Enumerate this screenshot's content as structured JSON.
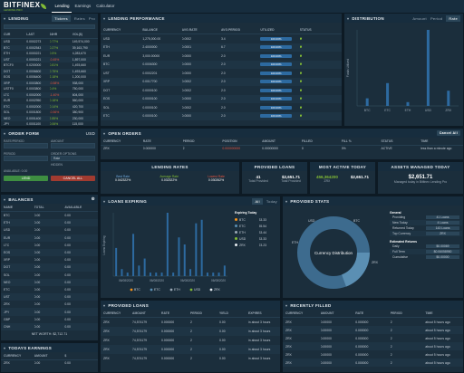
{
  "app": {
    "name": "BITFINEX",
    "sub": "LENDING PRO",
    "tabs": [
      "Lending",
      "Earnings",
      "Calculator"
    ]
  },
  "lending": {
    "title": "LENDING",
    "tabs": [
      "Tickers",
      "Rates",
      "Pro"
    ],
    "cols": [
      "CUR",
      "LAST",
      "24HR",
      "VOL($)"
    ],
    "rows": [
      [
        "USD",
        "0.0002273",
        "0.77%",
        "149,574,000"
      ],
      [
        "BTC",
        "0.0002543",
        "0.27%",
        "39,163,790"
      ],
      [
        "ETH",
        "0.0000221",
        "0.5%",
        "4,283,670"
      ],
      [
        "UST",
        "0.0000221",
        "-0.45%",
        "1,897,000"
      ],
      [
        "BTCF0",
        "0.0200000",
        "0.81%",
        "1,493,660"
      ],
      [
        "DOT",
        "0.0006600",
        "0.75%",
        "1,493,660"
      ],
      [
        "EOS",
        "0.0006400",
        "2.18%",
        "1,200,000"
      ],
      [
        "XRP",
        "0.0003800",
        "-0.58%",
        "938,000"
      ],
      [
        "USTF0",
        "0.0003800",
        "0.4%",
        "750,000"
      ],
      [
        "LTC",
        "0.0002000",
        "-1.40%",
        "604,000"
      ],
      [
        "EUR",
        "0.0002950",
        "0.18%",
        "560,000"
      ],
      [
        "ETC",
        "0.0002000",
        "0.14%",
        "420,700"
      ],
      [
        "SOL",
        "0.0001800",
        "-0.56%",
        "380,900"
      ],
      [
        "NEO",
        "0.0001400",
        "2.85%",
        "230,000"
      ],
      [
        "JPY",
        "0.0001100",
        "0.06%",
        "115,000"
      ]
    ]
  },
  "lending_perf": {
    "title": "LENDING PERFORMANCE",
    "cols": [
      "CURRENCY",
      "BALANCE",
      "AVG.RATE",
      "AVG.PERIOD",
      "UTILIZED",
      "STATUS"
    ],
    "rows": [
      [
        "USD",
        "1,275,000.00",
        "0.0002",
        "3.4",
        "100.00%"
      ],
      [
        "ETH",
        "2.4000000",
        "0.0001",
        "6.7",
        "100.00%"
      ],
      [
        "EUR",
        "3,000.00000",
        "0.0000",
        "2.0",
        "100.00%"
      ],
      [
        "BTC",
        "0.0006300",
        "0.0000",
        "2.0",
        "100.00%"
      ],
      [
        "UST",
        "0.0002201",
        "0.0000",
        "2.0",
        "100.00%"
      ],
      [
        "XRP",
        "0.0017700",
        "0.0002",
        "2.0",
        "100.00%"
      ],
      [
        "DOT",
        "0.0000100",
        "0.0002",
        "2.0",
        "100.00%"
      ],
      [
        "EOS",
        "0.0000100",
        "0.0000",
        "2.0",
        "100.00%"
      ],
      [
        "SOL",
        "0.0000100",
        "0.0002",
        "2.0",
        "100.00%"
      ],
      [
        "ETC",
        "0.0000100",
        "0.0000",
        "2.0",
        "100.00%"
      ]
    ]
  },
  "distribution": {
    "title": "DISTRIBUTION",
    "tabs": [
      "Amount",
      "Period",
      "Rate"
    ],
    "ylabel": "Funds Utilized",
    "chart_data": {
      "type": "bar",
      "categories": [
        "BTC",
        "ETC",
        "ETH",
        "USD",
        "ZRX"
      ],
      "values": [
        0.1,
        0.3,
        0.05,
        1.0,
        0.2
      ],
      "xlabel": "",
      "ylabel": ""
    }
  },
  "order_form": {
    "title": "ORDER FORM",
    "currency": "USD",
    "labels": [
      "RATE/PERIOD",
      "AMOUNT",
      "PERIOD",
      "ORDER OPTIONS"
    ],
    "options": [
      "Rate",
      "HIDDEN"
    ],
    "lend": "LEND",
    "cancel": "CANCEL ALL",
    "avail": "AVAILABLE: 0.00"
  },
  "balances": {
    "title": "BALANCES",
    "cols": [
      "NAME",
      "TOTAL",
      "AVAILABLE"
    ],
    "rows": [
      [
        "BTC",
        "0.00",
        "0.00"
      ],
      [
        "ETH",
        "0.00",
        "0.00"
      ],
      [
        "USD",
        "0.00",
        "0.00"
      ],
      [
        "EUR",
        "0.00",
        "0.00"
      ],
      [
        "LTC",
        "0.00",
        "0.00"
      ],
      [
        "EOS",
        "0.00",
        "0.00"
      ],
      [
        "XRP",
        "0.00",
        "0.00"
      ],
      [
        "DOT",
        "0.00",
        "0.00"
      ],
      [
        "SOL",
        "0.00",
        "0.00"
      ],
      [
        "NEO",
        "0.00",
        "0.00"
      ],
      [
        "ETC",
        "0.00",
        "0.00"
      ],
      [
        "UST",
        "0.00",
        "0.00"
      ],
      [
        "ZRX",
        "0.00",
        "0.00"
      ],
      [
        "JPY",
        "0.00",
        "0.00"
      ],
      [
        "GBP",
        "0.00",
        "0.00"
      ],
      [
        "CNH",
        "0.00",
        "0.00"
      ]
    ],
    "net_worth": "NET WORTH: $2,712.71"
  },
  "todays_earnings": {
    "title": "TODAYS EARNINGS",
    "cols": [
      "CURRENCY",
      "AMOUNT",
      "$"
    ],
    "rows": [
      [
        "ZRX",
        "0.00",
        "0.00"
      ]
    ]
  },
  "open_orders": {
    "title": "OPEN ORDERS",
    "cancel": "Cancel All",
    "cols": [
      "CURRENCY",
      "RATE",
      "PERIOD",
      "POSITION",
      "AMOUNT",
      "FILLED",
      "FILL %",
      "STATUS",
      "TIME"
    ],
    "row": [
      "ZRX",
      "0.000000",
      "2",
      "0.000000000",
      "0.00000000",
      "0",
      "0%",
      "ACTIVE",
      "less than a minute ago"
    ]
  },
  "lending_rates": {
    "title": "LENDING RATES",
    "items": [
      [
        "Best Rate",
        "0.042322%"
      ],
      [
        "Average Rate",
        "0.032322%"
      ],
      [
        "Lowest Rate",
        "0.030262%"
      ]
    ]
  },
  "provided_loans_stat": {
    "title": "PROVIDED LOANS",
    "items": [
      [
        "41",
        "Total Provided"
      ],
      [
        "$2,651.71",
        "Total Provided"
      ]
    ]
  },
  "most_active": {
    "title": "MOST ACTIVE TODAY",
    "items": [
      [
        "456,364200",
        "ZRX"
      ],
      [
        "$2,651.71",
        ""
      ]
    ]
  },
  "assets_managed": {
    "title": "ASSETS MANAGED TODAY",
    "value": "$2,651.71",
    "label": "Managed today in Bitfinex Lending Pro"
  },
  "loans_expiring": {
    "title": "LOANS EXPIRING",
    "tabs": [
      "All",
      "Today"
    ],
    "ylabel": "Loans Expiring",
    "xlabels": [
      "06/08/2020",
      "06/08/2020",
      "06/08/2020",
      "06/08/2020"
    ],
    "legend": [
      "BTC",
      "ETC",
      "ETH",
      "USD",
      "ZRX"
    ],
    "chart_data": {
      "type": "bar",
      "categories": [
        "1",
        "2",
        "3",
        "4",
        "5",
        "6",
        "7",
        "8",
        "9",
        "10",
        "11",
        "12",
        "13",
        "14",
        "15",
        "16",
        "17",
        "18",
        "19",
        "20"
      ],
      "values": [
        8,
        2,
        1,
        12,
        3,
        5,
        1,
        1,
        1,
        18,
        1,
        11,
        9,
        2,
        15,
        16,
        1,
        1,
        1,
        3
      ]
    },
    "today": {
      "title": "Expiring Today",
      "rows": [
        [
          "BTC",
          "33.33"
        ],
        [
          "ETC",
          "55.54"
        ],
        [
          "ETH",
          "33.44"
        ],
        [
          "USD",
          "33.33"
        ],
        [
          "ZRX",
          "23.23"
        ]
      ]
    }
  },
  "provided_stats": {
    "title": "PROVIDED STATS",
    "center": "Currency Distribution",
    "labels": [
      "USD",
      "BTC",
      "ETH",
      "ZRX"
    ],
    "general": {
      "title": "General",
      "rows": [
        [
          "Providing",
          "41 Loans"
        ],
        [
          "New Today",
          "4 Loans"
        ],
        [
          "Returned Today",
          "143 Loans"
        ],
        [
          "Top Currency",
          "ZRX"
        ]
      ]
    },
    "returns": {
      "title": "Estimated Returns",
      "rows": [
        [
          "Daily",
          "$0.00069"
        ],
        [
          "Full Term",
          "$0.06058950"
        ],
        [
          "Cumulative",
          "$0.00000"
        ]
      ]
    }
  },
  "provided_loans": {
    "title": "PROVIDED LOANS",
    "cols": [
      "CURRENCY",
      "AMOUNT",
      "RATE",
      "PERIOD",
      "YIELD",
      "EXPIRES"
    ],
    "rows": [
      [
        "ZRX",
        "74,574179",
        "0.000000",
        "2",
        "0.00",
        "in about 3 hours"
      ],
      [
        "ZRX",
        "74,574179",
        "0.000000",
        "2",
        "0.00",
        "in about 3 hours"
      ],
      [
        "ZRX",
        "74,574179",
        "0.000000",
        "2",
        "0.00",
        "in about 3 hours"
      ],
      [
        "ZRX",
        "74,574179",
        "0.000000",
        "2",
        "0.00",
        "in about 3 hours"
      ],
      [
        "ZRX",
        "74,574179",
        "0.000000",
        "2",
        "0.00",
        "in about 3 hours"
      ]
    ]
  },
  "recently_filled": {
    "title": "RECENTLY FILLED",
    "cols": [
      "CURRENCY",
      "AMOUNT",
      "RATE",
      "PERIOD",
      "TIME"
    ],
    "rows": [
      [
        "ZRX",
        "0.00000",
        "0.000000",
        "2",
        "about 5 hours ago"
      ],
      [
        "ZRX",
        "0.00000",
        "0.000000",
        "2",
        "about 5 hours ago"
      ],
      [
        "ZRX",
        "0.00000",
        "0.000000",
        "2",
        "about 5 hours ago"
      ],
      [
        "ZRX",
        "0.00000",
        "0.000000",
        "2",
        "about 5 hours ago"
      ],
      [
        "ZRX",
        "0.00000",
        "0.000000",
        "2",
        "about 5 hours ago"
      ],
      [
        "ZRX",
        "0.00000",
        "0.000000",
        "2",
        "about 5 hours ago"
      ]
    ]
  },
  "colors": {
    "accent": "#82bb36",
    "negative": "#e55541",
    "bar": "#2d6aa0",
    "bg": "#0d1a24",
    "panel": "#1b2e3c"
  }
}
